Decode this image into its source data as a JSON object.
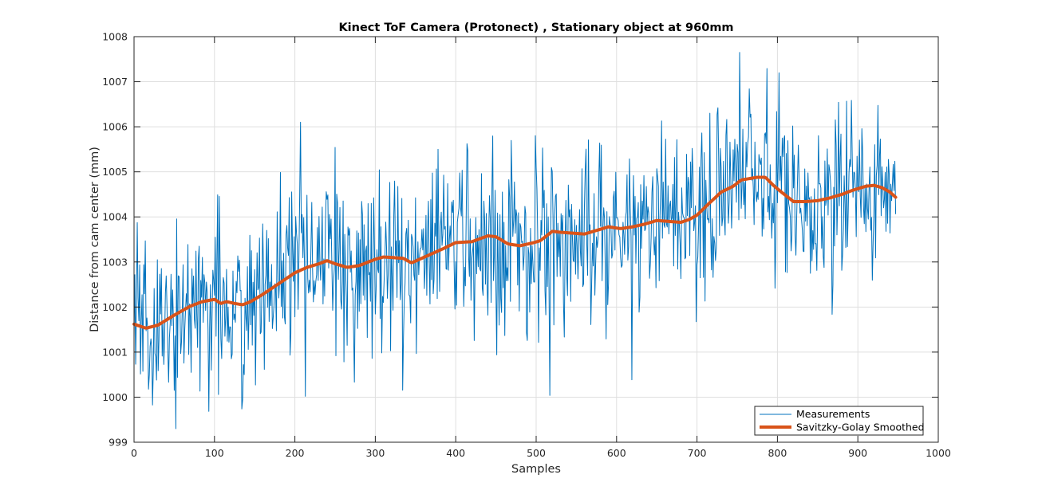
{
  "chart_data": {
    "type": "line",
    "title": "Kinect ToF Camera (Protonect) , Stationary object at 960mm",
    "xlabel": "Samples",
    "ylabel": "Distance from cam center (mm)",
    "xlim": [
      0,
      1000
    ],
    "ylim": [
      999,
      1008
    ],
    "xticks": [
      0,
      100,
      200,
      300,
      400,
      500,
      600,
      700,
      800,
      900,
      1000
    ],
    "yticks": [
      999,
      1000,
      1001,
      1002,
      1003,
      1004,
      1005,
      1006,
      1007,
      1008
    ],
    "grid": true,
    "legend_position": "bottom-right",
    "sample_count": 948,
    "noise_seed": 7,
    "series": [
      {
        "name": "Measurements",
        "color": "#0072bd",
        "kind": "noisy",
        "noise_std": 1.0,
        "noise_max": 3.6
      },
      {
        "name": "Savitzky-Golay Smoothed",
        "color": "#d95319",
        "kind": "smooth",
        "x": [
          0,
          15,
          30,
          50,
          70,
          85,
          100,
          108,
          115,
          125,
          135,
          145,
          160,
          180,
          200,
          215,
          230,
          240,
          250,
          265,
          280,
          300,
          310,
          320,
          335,
          345,
          355,
          370,
          385,
          400,
          420,
          440,
          450,
          465,
          480,
          495,
          505,
          520,
          530,
          545,
          560,
          575,
          590,
          605,
          620,
          635,
          650,
          665,
          680,
          690,
          700,
          715,
          730,
          745,
          755,
          765,
          775,
          785,
          795,
          805,
          820,
          835,
          850,
          865,
          880,
          895,
          910,
          920,
          930,
          940,
          948
        ],
        "y": [
          1001.62,
          1001.53,
          1001.6,
          1001.82,
          1002.02,
          1002.12,
          1002.17,
          1002.08,
          1002.12,
          1002.08,
          1002.05,
          1002.12,
          1002.28,
          1002.52,
          1002.76,
          1002.88,
          1002.96,
          1003.03,
          1002.96,
          1002.88,
          1002.92,
          1003.06,
          1003.11,
          1003.1,
          1003.08,
          1002.98,
          1003.06,
          1003.18,
          1003.3,
          1003.43,
          1003.45,
          1003.58,
          1003.56,
          1003.4,
          1003.36,
          1003.42,
          1003.47,
          1003.68,
          1003.66,
          1003.64,
          1003.62,
          1003.7,
          1003.78,
          1003.74,
          1003.78,
          1003.84,
          1003.92,
          1003.9,
          1003.88,
          1003.94,
          1004.04,
          1004.3,
          1004.55,
          1004.68,
          1004.82,
          1004.85,
          1004.88,
          1004.88,
          1004.7,
          1004.55,
          1004.34,
          1004.34,
          1004.36,
          1004.42,
          1004.5,
          1004.6,
          1004.68,
          1004.7,
          1004.65,
          1004.55,
          1004.42
        ]
      }
    ]
  }
}
